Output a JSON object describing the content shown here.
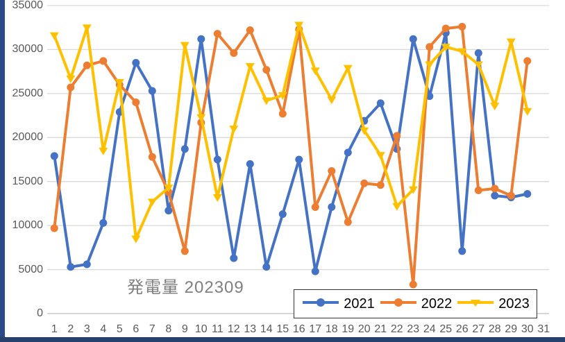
{
  "window": {
    "left_bar_color": "#2c4a85",
    "bottom_bar_color": "#27406e"
  },
  "chart_data": {
    "type": "line",
    "title": "発電量 202309",
    "xlabel": "",
    "ylabel": "",
    "x_axis_categories": [
      "1",
      "2",
      "3",
      "4",
      "5",
      "6",
      "7",
      "8",
      "9",
      "10",
      "11",
      "12",
      "13",
      "14",
      "15",
      "16",
      "17",
      "18",
      "19",
      "20",
      "21",
      "22",
      "23",
      "24",
      "25",
      "26",
      "27",
      "28",
      "29",
      "30",
      "31"
    ],
    "x": [
      1,
      2,
      3,
      4,
      5,
      6,
      7,
      8,
      9,
      10,
      11,
      12,
      13,
      14,
      15,
      16,
      17,
      18,
      19,
      20,
      21,
      22,
      23,
      24,
      25,
      26,
      27,
      28,
      29,
      30
    ],
    "ylim": [
      0,
      35000
    ],
    "y_ticks": [
      {
        "value": 0,
        "label": "0"
      },
      {
        "value": 5000,
        "label": "5000"
      },
      {
        "value": 10000,
        "label": "10000"
      },
      {
        "value": 15000,
        "label": "15000"
      },
      {
        "value": 20000,
        "label": "20000"
      },
      {
        "value": 25000,
        "label": "25000"
      },
      {
        "value": 30000,
        "label": "30000"
      },
      {
        "value": 35000,
        "label": "35000"
      }
    ],
    "grid": true,
    "gridline_color": "#d9d9d9",
    "zero_line_color": "#bfbfbf",
    "tick_label_color": "#595959",
    "title_color": "#7f7f7f",
    "legend_position": "bottom-right",
    "legend_border_color": "#333333",
    "series": [
      {
        "name": "2021",
        "color": "#4472C4",
        "marker": "circle",
        "values": [
          17900,
          5300,
          5600,
          10300,
          22900,
          28500,
          25300,
          11700,
          18700,
          31200,
          17500,
          6300,
          17000,
          5300,
          11300,
          17500,
          4800,
          12100,
          18300,
          21900,
          23900,
          18700,
          31200,
          24700,
          31900,
          7100,
          29600,
          13400,
          13200,
          13600
        ]
      },
      {
        "name": "2022",
        "color": "#ED7D31",
        "marker": "circle",
        "values": [
          9700,
          25700,
          28200,
          28700,
          26000,
          24000,
          17800,
          13800,
          7100,
          21700,
          31800,
          29600,
          32200,
          27700,
          22700,
          32300,
          12100,
          16200,
          10400,
          14800,
          14600,
          20200,
          3300,
          30300,
          32400,
          32600,
          14000,
          14200,
          13400,
          28700
        ]
      },
      {
        "name": "2023",
        "color": "#FFC000",
        "marker": "triangle-down",
        "values": [
          31600,
          26700,
          32500,
          18500,
          26300,
          8500,
          12700,
          14300,
          30500,
          22300,
          13200,
          21000,
          28100,
          24200,
          24800,
          32800,
          27600,
          24300,
          27900,
          20800,
          18000,
          12200,
          14100,
          28300,
          30300,
          29800,
          28300,
          23600,
          30900,
          23000
        ]
      }
    ]
  }
}
